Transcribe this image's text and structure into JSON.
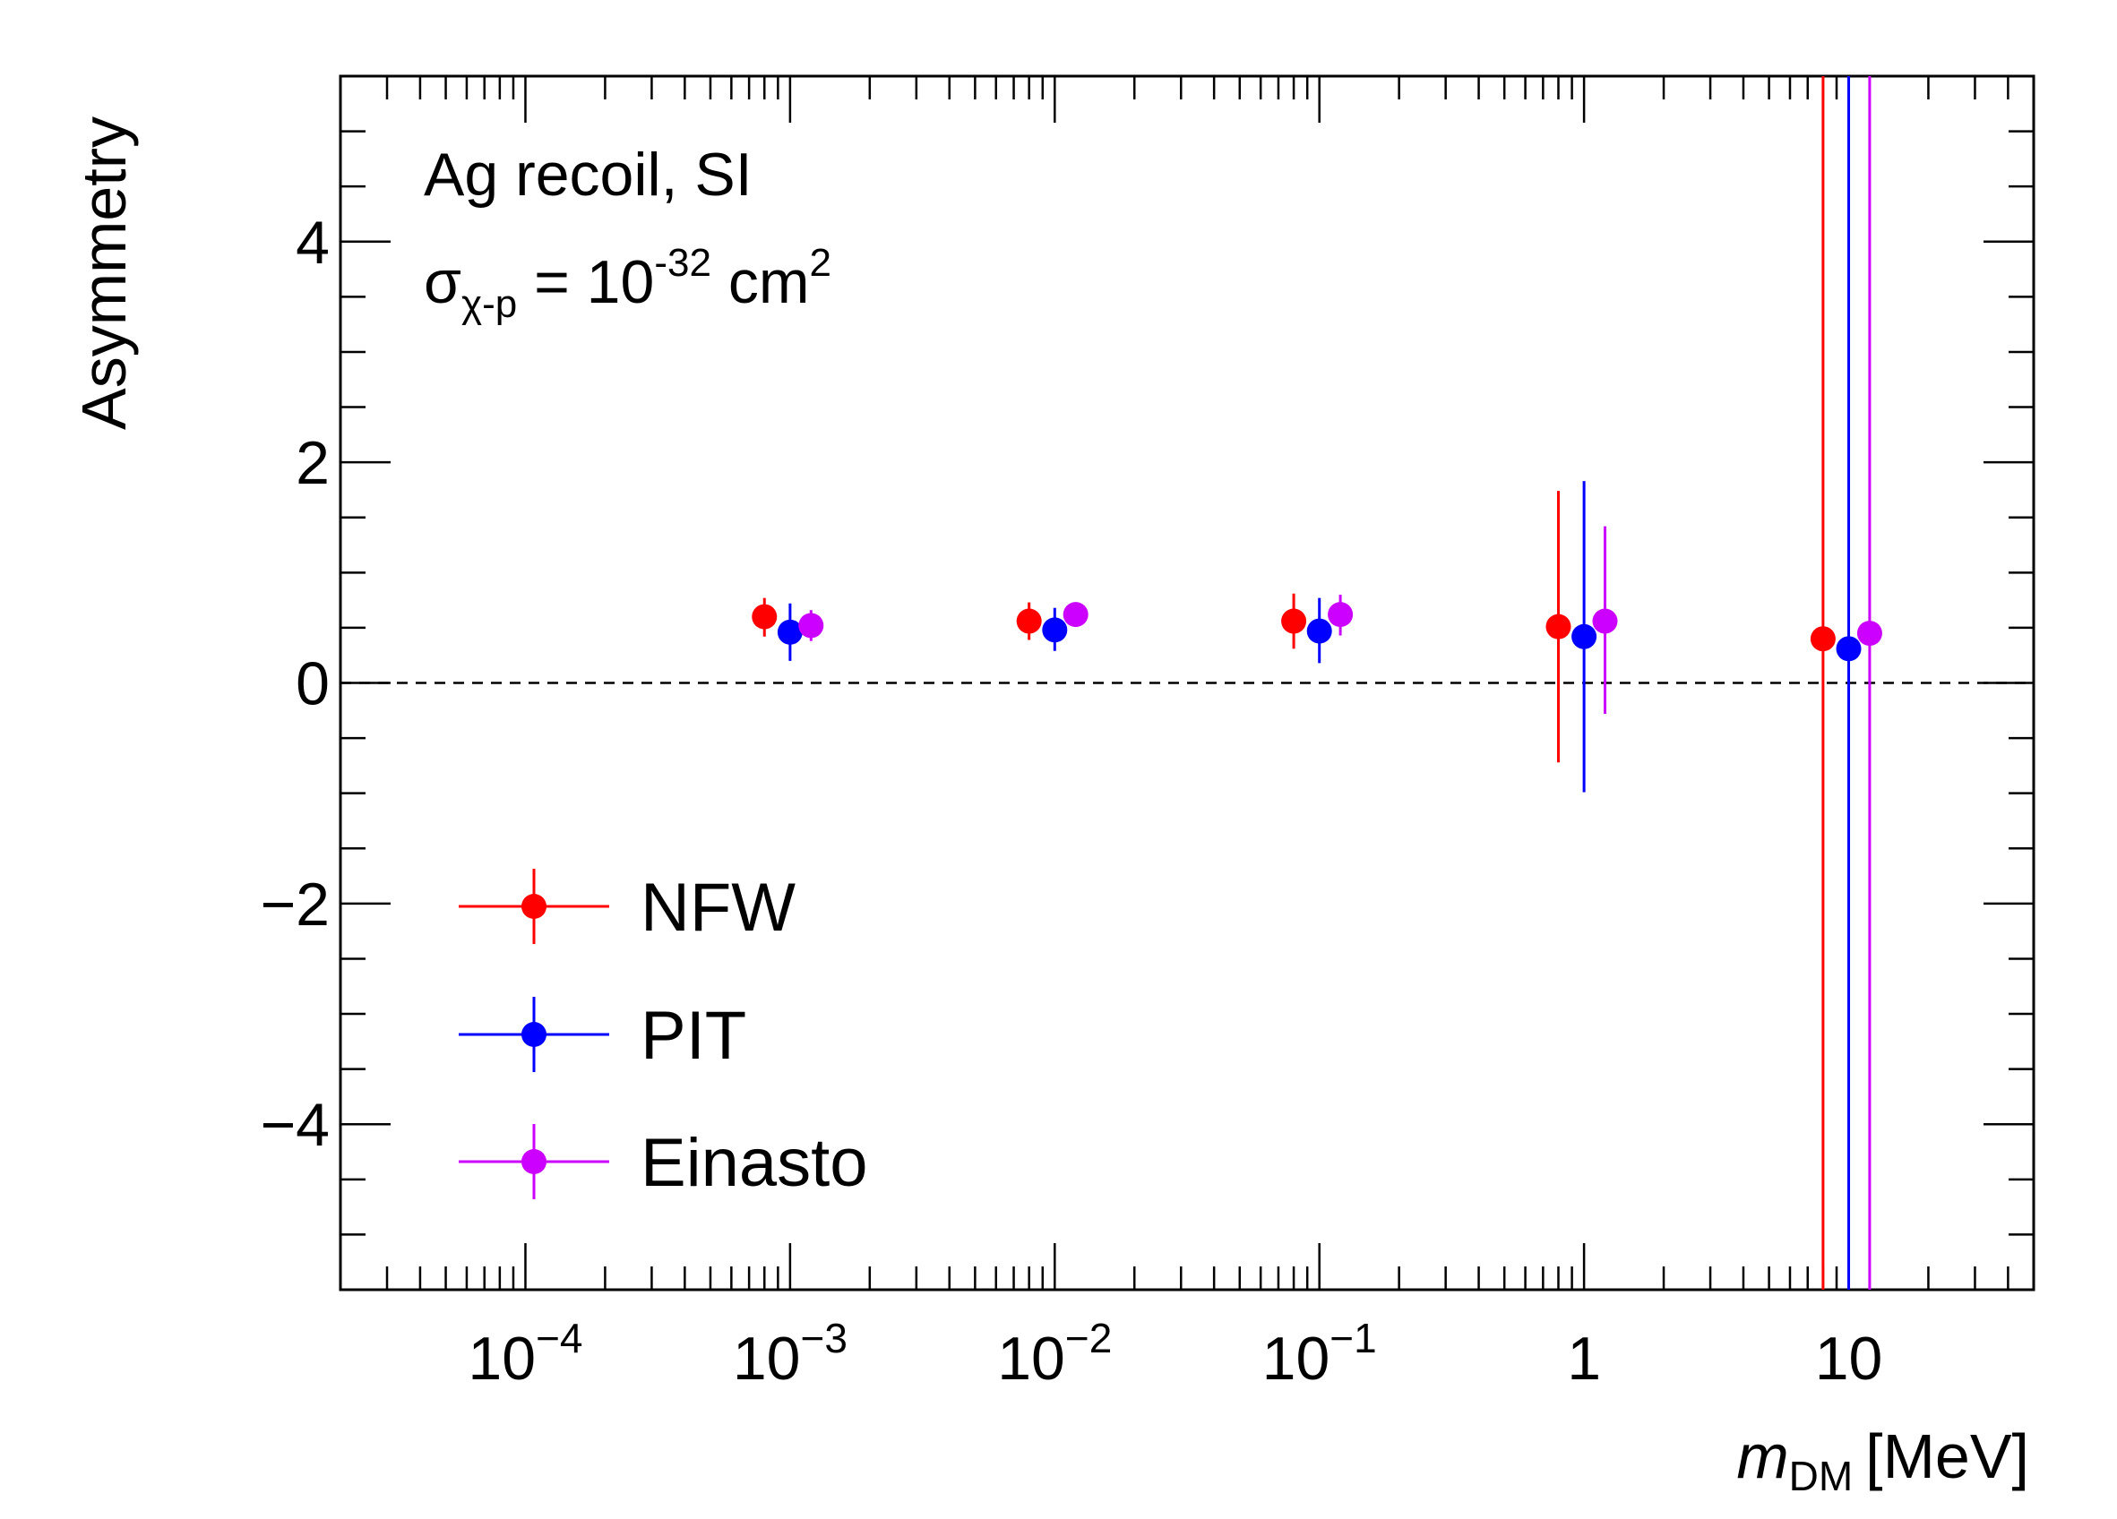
{
  "chart_data": {
    "type": "scatter",
    "title": "",
    "xlabel": "m",
    "xlabel_sub": "DM",
    "xlabel_unit": "[MeV]",
    "ylabel": "Asymmetry",
    "xscale": "log",
    "xlim": [
      2e-05,
      50
    ],
    "ylim": [
      -5.5,
      5.5
    ],
    "x_ticks": [
      {
        "value": 0.0001,
        "base": "10",
        "exp": "−4"
      },
      {
        "value": 0.001,
        "base": "10",
        "exp": "−3"
      },
      {
        "value": 0.01,
        "base": "10",
        "exp": "−2"
      },
      {
        "value": 0.1,
        "base": "10",
        "exp": "−1"
      },
      {
        "value": 1,
        "base": "1",
        "exp": ""
      },
      {
        "value": 10,
        "base": "10",
        "exp": ""
      }
    ],
    "y_ticks": [
      {
        "value": 4,
        "label": "4"
      },
      {
        "value": 2,
        "label": "2"
      },
      {
        "value": 0,
        "label": "0"
      },
      {
        "value": -2,
        "label": "−2"
      },
      {
        "value": -4,
        "label": "−4"
      }
    ],
    "reference_line": {
      "y": 0,
      "style": "dashed"
    },
    "annotation": {
      "line1": "Ag recoil, SI",
      "sigma": "σ",
      "sigma_sub": "χ-p",
      "eq": " = 10",
      "exp": "-32",
      "unit": " cm",
      "unit_exp": "2"
    },
    "legend_position": "bottom-left",
    "series": [
      {
        "name": "NFW",
        "color": "#ff0000",
        "points": [
          {
            "x": 0.0008,
            "y": 0.6,
            "ylo": 0.42,
            "yhi": 0.77
          },
          {
            "x": 0.008,
            "y": 0.56,
            "ylo": 0.39,
            "yhi": 0.73
          },
          {
            "x": 0.08,
            "y": 0.56,
            "ylo": 0.31,
            "yhi": 0.81
          },
          {
            "x": 0.8,
            "y": 0.51,
            "ylo": -0.72,
            "yhi": 1.74
          },
          {
            "x": 8,
            "y": 0.4,
            "ylo": -5.5,
            "yhi": 5.5
          }
        ]
      },
      {
        "name": "PIT",
        "color": "#0000ff",
        "points": [
          {
            "x": 0.001,
            "y": 0.46,
            "ylo": 0.2,
            "yhi": 0.72
          },
          {
            "x": 0.01,
            "y": 0.48,
            "ylo": 0.29,
            "yhi": 0.68
          },
          {
            "x": 0.1,
            "y": 0.47,
            "ylo": 0.18,
            "yhi": 0.77
          },
          {
            "x": 1,
            "y": 0.42,
            "ylo": -0.99,
            "yhi": 1.83
          },
          {
            "x": 10,
            "y": 0.31,
            "ylo": -5.5,
            "yhi": 5.5
          }
        ]
      },
      {
        "name": "Einasto",
        "color": "#cc00ff",
        "points": [
          {
            "x": 0.0012,
            "y": 0.52,
            "ylo": 0.38,
            "yhi": 0.66
          },
          {
            "x": 0.012,
            "y": 0.62,
            "ylo": 0.55,
            "yhi": 0.7
          },
          {
            "x": 0.12,
            "y": 0.62,
            "ylo": 0.43,
            "yhi": 0.8
          },
          {
            "x": 1.2,
            "y": 0.56,
            "ylo": -0.28,
            "yhi": 1.42
          },
          {
            "x": 12,
            "y": 0.45,
            "ylo": -5.5,
            "yhi": 5.5
          }
        ]
      }
    ]
  }
}
